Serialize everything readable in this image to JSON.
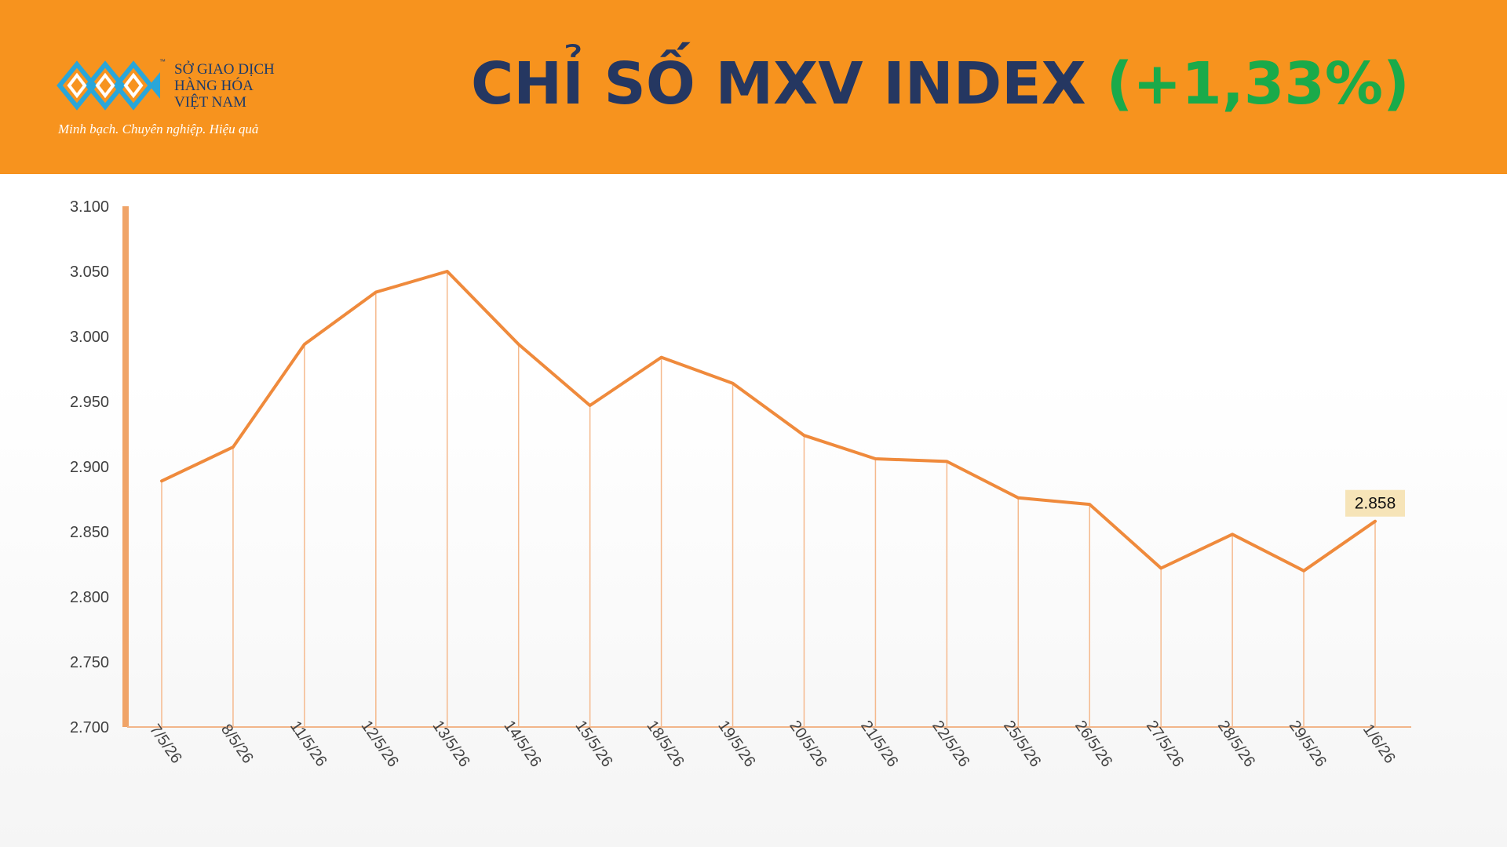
{
  "header": {
    "logo": {
      "tm": "™",
      "line1": "SỞ GIAO DỊCH",
      "line2": "HÀNG HÓA",
      "line3": "VIỆT NAM",
      "slogan": "Minh bạch. Chuyên nghiệp. Hiệu quả",
      "logo_color": "#2aa6d9",
      "text_color": "#1b3a6b"
    },
    "title_main": "CHỈ SỐ MXV INDEX ",
    "title_change": "(+1,33%)",
    "background_color": "#f7931e",
    "title_color": "#253761",
    "change_color": "#1aaa4a"
  },
  "chart_data": {
    "type": "line",
    "title": "",
    "xlabel": "",
    "ylabel": "",
    "categories": [
      "7/5/26",
      "8/5/26",
      "11/5/26",
      "12/5/26",
      "13/5/26",
      "14/5/26",
      "15/5/26",
      "18/5/26",
      "19/5/26",
      "20/5/26",
      "21/5/26",
      "22/5/26",
      "25/5/26",
      "26/5/26",
      "27/5/26",
      "28/5/26",
      "29/5/26",
      "1/6/26"
    ],
    "series": [
      {
        "values": [
          2889,
          2915,
          2994,
          3034,
          3050,
          2994,
          2947,
          2984,
          2964,
          2924,
          2906,
          2904,
          2876,
          2871,
          2822,
          2848,
          2820,
          2858
        ],
        "color": "#ef8a3c"
      }
    ],
    "ylim": [
      2700,
      3100
    ],
    "yticks": [
      {
        "value": 3100,
        "label": "3.100"
      },
      {
        "value": 3050,
        "label": "3.050"
      },
      {
        "value": 3000,
        "label": "3.000"
      },
      {
        "value": 2950,
        "label": "2.950"
      },
      {
        "value": 2900,
        "label": "2.900"
      },
      {
        "value": 2850,
        "label": "2.850"
      },
      {
        "value": 2800,
        "label": "2.800"
      },
      {
        "value": 2750,
        "label": "2.750"
      },
      {
        "value": 2700,
        "label": "2.700"
      }
    ],
    "last_value_label": "2.858",
    "drop_lines": true,
    "grid": false,
    "legend": "none"
  }
}
